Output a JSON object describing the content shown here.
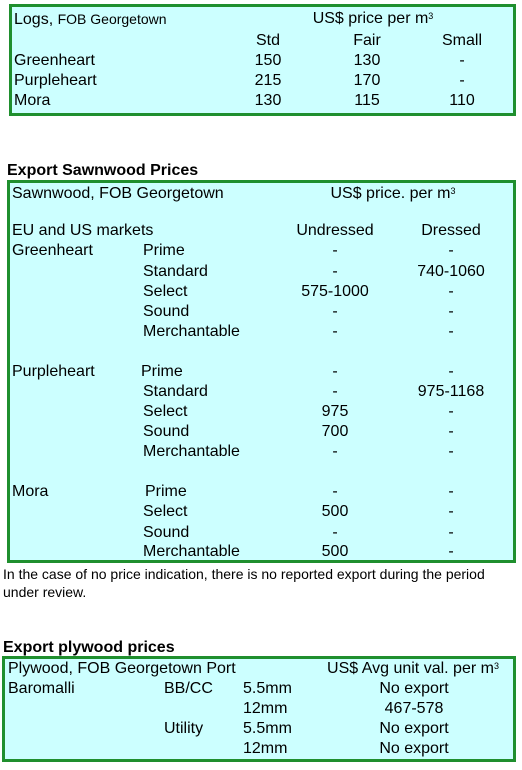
{
  "logs": {
    "title": "Logs,",
    "subtitle": "FOB Georgetown",
    "price_label": "US$ price per m",
    "sup": "3",
    "columns": [
      "Std",
      "Fair",
      "Small"
    ],
    "rows": [
      {
        "name": "Greenheart",
        "values": [
          "150",
          "130",
          "-"
        ]
      },
      {
        "name": "Purpleheart",
        "values": [
          "215",
          "170",
          "-"
        ]
      },
      {
        "name": "Mora",
        "values": [
          "130",
          "115",
          "110"
        ]
      }
    ]
  },
  "sawnwood": {
    "heading": "Export Sawnwood Prices",
    "title": "Sawnwood, FOB Georgetown",
    "price_label": "US$ price. per m",
    "sup": "3",
    "markets": "EU and US markets",
    "columns": [
      "Undressed",
      "Dressed"
    ],
    "groups": [
      {
        "species": "Greenheart",
        "rows": [
          {
            "grade": "Prime",
            "undressed": "-",
            "dressed": "-"
          },
          {
            "grade": "Standard",
            "undressed": "-",
            "dressed": "740-1060"
          },
          {
            "grade": "Select",
            "undressed": "575-1000",
            "dressed": "-"
          },
          {
            "grade": "Sound",
            "undressed": "-",
            "dressed": "-"
          },
          {
            "grade": "Merchantable",
            "undressed": "-",
            "dressed": "-"
          }
        ]
      },
      {
        "species": "Purpleheart",
        "rows": [
          {
            "grade": "Prime",
            "undressed": "-",
            "dressed": "-"
          },
          {
            "grade": "Standard",
            "undressed": "-",
            "dressed": "975-1168"
          },
          {
            "grade": "Select",
            "undressed": "975",
            "dressed": "-"
          },
          {
            "grade": "Sound",
            "undressed": "700",
            "dressed": "-"
          },
          {
            "grade": "Merchantable",
            "undressed": "-",
            "dressed": "-"
          }
        ]
      },
      {
        "species": "Mora",
        "rows": [
          {
            "grade": "Prime",
            "undressed": "-",
            "dressed": "-"
          },
          {
            "grade": "Select",
            "undressed": "500",
            "dressed": "-"
          },
          {
            "grade": "Sound",
            "undressed": "-",
            "dressed": "-"
          },
          {
            "grade": "Merchantable",
            "undressed": "500",
            "dressed": "-"
          }
        ]
      }
    ],
    "note": "In the case of no price indication, there is no reported export during the period under review."
  },
  "plywood": {
    "heading": "Export plywood prices",
    "title": "Plywood, FOB Georgetown Port",
    "price_label": "US$ Avg unit val. per m",
    "sup": "3",
    "species": "Baromalli",
    "rows": [
      {
        "grade": "BB/CC",
        "size": "5.5mm",
        "value": "No export"
      },
      {
        "grade": "",
        "size": "12mm",
        "value": "467-578"
      },
      {
        "grade": "Utility",
        "size": "5.5mm",
        "value": "No export"
      },
      {
        "grade": "",
        "size": "12mm",
        "value": "No export"
      }
    ]
  }
}
